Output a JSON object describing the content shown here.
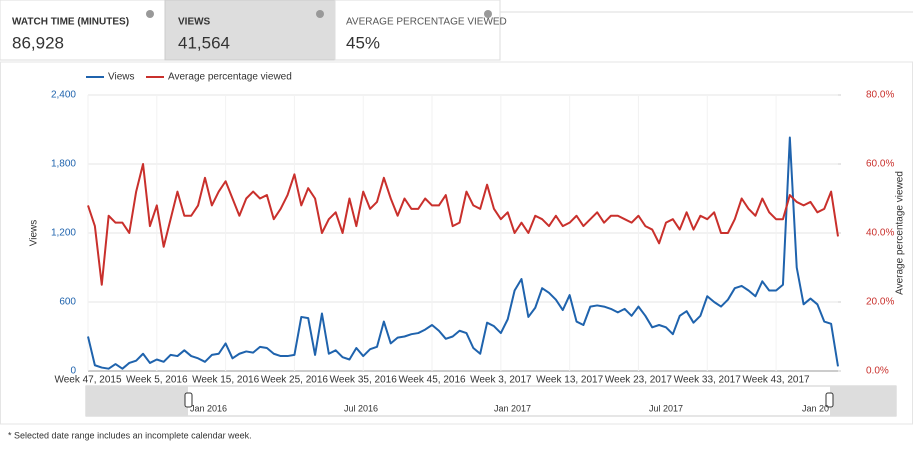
{
  "tabs": [
    {
      "title": "WATCH TIME (MINUTES)",
      "value": "86,928"
    },
    {
      "title": "VIEWS",
      "value": "41,564"
    },
    {
      "title": "AVERAGE PERCENTAGE VIEWED",
      "value": "45%"
    }
  ],
  "navigator": [
    "Jan 2016",
    "Jul 2016",
    "Jan 2017",
    "Jul 2017",
    "Jan 20"
  ],
  "footnote": "* Selected date range includes an incomplete calendar week.",
  "chart_data": {
    "type": "line",
    "ylabel": "Views",
    "y2label": "Average percentage viewed",
    "categories": [
      "Week 47, 2015",
      null,
      null,
      null,
      null,
      null,
      null,
      null,
      null,
      null,
      "Week 5, 2016",
      null,
      null,
      null,
      null,
      null,
      null,
      null,
      null,
      null,
      "Week 15, 2016",
      null,
      null,
      null,
      null,
      null,
      null,
      null,
      null,
      null,
      "Week 25, 2016",
      null,
      null,
      null,
      null,
      null,
      null,
      null,
      null,
      null,
      "Week 35, 2016",
      null,
      null,
      null,
      null,
      null,
      null,
      null,
      null,
      null,
      "Week 45, 2016",
      null,
      null,
      null,
      null,
      null,
      null,
      null,
      null,
      null,
      "Week 3, 2017",
      null,
      null,
      null,
      null,
      null,
      null,
      null,
      null,
      null,
      "Week 13, 2017",
      null,
      null,
      null,
      null,
      null,
      null,
      null,
      null,
      null,
      "Week 23, 2017",
      null,
      null,
      null,
      null,
      null,
      null,
      null,
      null,
      null,
      "Week 33, 2017",
      null,
      null,
      null,
      null,
      null,
      null,
      null,
      null,
      null,
      "Week 43, 2017",
      null,
      null,
      null,
      null,
      null,
      null,
      null,
      null,
      null
    ],
    "series": [
      {
        "name": "Views",
        "color": "#1f63ad",
        "values": [
          300,
          50,
          30,
          20,
          60,
          20,
          70,
          90,
          150,
          70,
          100,
          80,
          140,
          130,
          180,
          130,
          110,
          80,
          140,
          150,
          240,
          110,
          150,
          170,
          160,
          210,
          200,
          150,
          130,
          130,
          140,
          470,
          460,
          140,
          500,
          150,
          180,
          120,
          100,
          200,
          130,
          190,
          210,
          430,
          240,
          290,
          300,
          320,
          330,
          360,
          400,
          350,
          280,
          300,
          350,
          330,
          200,
          150,
          420,
          390,
          330,
          450,
          700,
          800,
          470,
          550,
          720,
          680,
          620,
          530,
          660,
          430,
          400,
          560,
          570,
          560,
          540,
          510,
          540,
          480,
          560,
          480,
          380,
          400,
          380,
          320,
          480,
          520,
          420,
          480,
          650,
          600,
          560,
          620,
          720,
          740,
          700,
          650,
          780,
          700,
          700,
          750,
          2030,
          900,
          580,
          630,
          580,
          430,
          410,
          40
        ]
      },
      {
        "name": "Average percentage viewed",
        "color": "#c9302c",
        "axis": "y2",
        "values": [
          48,
          42,
          25,
          45,
          43,
          43,
          40,
          52,
          60,
          42,
          48,
          36,
          44,
          52,
          45,
          45,
          48,
          56,
          48,
          52,
          55,
          50,
          45,
          50,
          52,
          50,
          51,
          44,
          47,
          51,
          57,
          48,
          53,
          50,
          40,
          44,
          46,
          40,
          50,
          42,
          52,
          47,
          49,
          56,
          50,
          45,
          50,
          47,
          47,
          50,
          48,
          48,
          51,
          42,
          43,
          52,
          48,
          47,
          54,
          47,
          44,
          46,
          40,
          43,
          40,
          45,
          44,
          42,
          45,
          42,
          43,
          45,
          42,
          44,
          46,
          43,
          45,
          45,
          44,
          43,
          45,
          42,
          41,
          37,
          43,
          44,
          41,
          46,
          41,
          45,
          44,
          46,
          40,
          40,
          44,
          50,
          47,
          45,
          50,
          46,
          44,
          44,
          51,
          49,
          48,
          49,
          46,
          47,
          52,
          39
        ]
      }
    ],
    "ylim": [
      0,
      2400
    ],
    "yticks": [
      0,
      {
        "value": 600,
        "label": "600"
      },
      {
        "value": 1200,
        "label": "1,200"
      },
      {
        "value": 1800,
        "label": "1,800"
      },
      {
        "value": 2400,
        "label": "2,400"
      }
    ],
    "y2lim": [
      0,
      80
    ],
    "y2ticks": [
      {
        "value": 0,
        "label": "0.0%"
      },
      {
        "value": 20,
        "label": "20.0%"
      },
      {
        "value": 40,
        "label": "40.0%"
      },
      {
        "value": 60,
        "label": "60.0%"
      },
      {
        "value": 80,
        "label": "80.0%"
      }
    ],
    "grid": true,
    "legend": "top-left"
  }
}
